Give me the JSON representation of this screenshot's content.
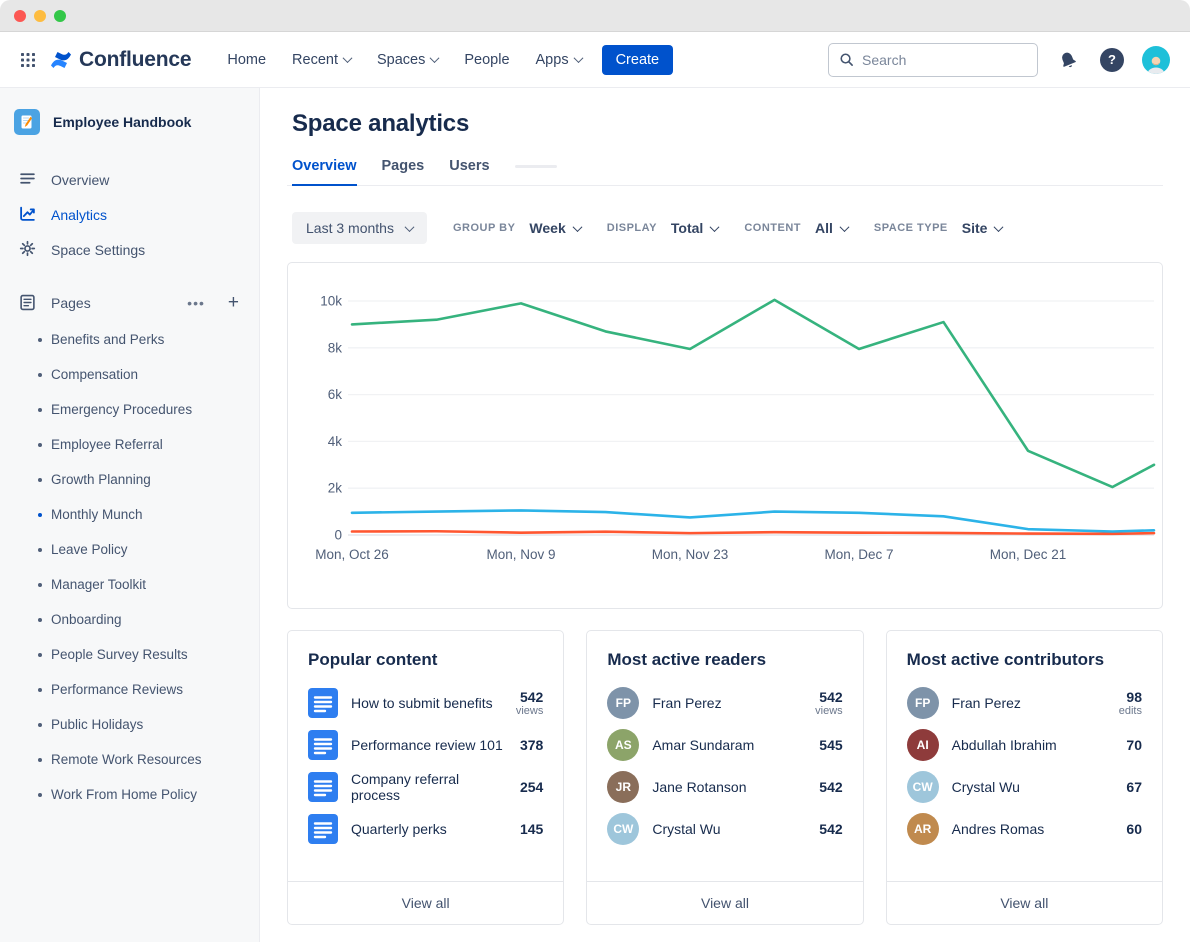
{
  "window": {
    "controls": [
      "close",
      "minimize",
      "zoom"
    ]
  },
  "navbar": {
    "logo_text": "Confluence",
    "items": [
      {
        "label": "Home",
        "chevron": false
      },
      {
        "label": "Recent",
        "chevron": true
      },
      {
        "label": "Spaces",
        "chevron": true
      },
      {
        "label": "People",
        "chevron": false
      },
      {
        "label": "Apps",
        "chevron": true
      }
    ],
    "create_label": "Create",
    "search_placeholder": "Search",
    "icons": [
      "app-switcher-icon",
      "confluence-logo",
      "search-icon",
      "bell-icon",
      "help-icon",
      "user-avatar"
    ]
  },
  "sidebar": {
    "space_name": "Employee Handbook",
    "space_icon": "notebook-pencil-icon",
    "nav": [
      {
        "label": "Overview",
        "icon": "overview-icon",
        "active": false
      },
      {
        "label": "Analytics",
        "icon": "analytics-icon",
        "active": true
      },
      {
        "label": "Space Settings",
        "icon": "gear-icon",
        "active": false
      }
    ],
    "pages_header": {
      "label": "Pages",
      "icon": "pages-icon",
      "actions": [
        "more-icon",
        "plus-icon"
      ]
    },
    "pages": [
      {
        "label": "Benefits and Perks",
        "active": false
      },
      {
        "label": "Compensation",
        "active": false
      },
      {
        "label": "Emergency Procedures",
        "active": false
      },
      {
        "label": "Employee Referral",
        "active": false
      },
      {
        "label": "Growth Planning",
        "active": false
      },
      {
        "label": "Monthly Munch",
        "active": true
      },
      {
        "label": "Leave Policy",
        "active": false
      },
      {
        "label": "Manager Toolkit",
        "active": false
      },
      {
        "label": "Onboarding",
        "active": false
      },
      {
        "label": "People Survey Results",
        "active": false
      },
      {
        "label": "Performance Reviews",
        "active": false
      },
      {
        "label": "Public Holidays",
        "active": false
      },
      {
        "label": "Remote Work Resources",
        "active": false
      },
      {
        "label": "Work From Home Policy",
        "active": false
      }
    ]
  },
  "main": {
    "title": "Space analytics",
    "tabs": [
      {
        "label": "Overview",
        "active": true
      },
      {
        "label": "Pages",
        "active": false
      },
      {
        "label": "Users",
        "active": false
      }
    ],
    "filters": {
      "date_range": "Last 3 months",
      "group_by_label": "GROUP BY",
      "group_by_value": "Week",
      "display_label": "DISPLAY",
      "display_value": "Total",
      "content_label": "CONTENT",
      "content_value": "All",
      "space_type_label": "SPACE TYPE",
      "space_type_value": "Site"
    },
    "cards": [
      {
        "title": "Popular content",
        "footer": "View all",
        "rows": [
          {
            "icon": "page-icon",
            "label": "How to submit benefits",
            "value": "542",
            "unit": "views"
          },
          {
            "icon": "page-icon",
            "label": "Performance review 101",
            "value": "378",
            "unit": ""
          },
          {
            "icon": "page-icon",
            "label": "Company referral process",
            "value": "254",
            "unit": ""
          },
          {
            "icon": "page-icon",
            "label": "Quarterly perks",
            "value": "145",
            "unit": ""
          }
        ]
      },
      {
        "title": "Most active readers",
        "footer": "View all",
        "rows": [
          {
            "avatar": {
              "initials": "FP",
              "color": "#7E93A9"
            },
            "label": "Fran Perez",
            "value": "542",
            "unit": "views"
          },
          {
            "avatar": {
              "initials": "AS",
              "color": "#8CA469"
            },
            "label": "Amar Sundaram",
            "value": "545",
            "unit": ""
          },
          {
            "avatar": {
              "initials": "JR",
              "color": "#8A6E5A"
            },
            "label": "Jane Rotanson",
            "value": "542",
            "unit": ""
          },
          {
            "avatar": {
              "initials": "CW",
              "color": "#9EC6DB"
            },
            "label": "Crystal Wu",
            "value": "542",
            "unit": ""
          }
        ]
      },
      {
        "title": "Most active contributors",
        "footer": "View all",
        "rows": [
          {
            "avatar": {
              "initials": "FP",
              "color": "#7E93A9"
            },
            "label": "Fran Perez",
            "value": "98",
            "unit": "edits"
          },
          {
            "avatar": {
              "initials": "AI",
              "color": "#8E3B3B"
            },
            "label": "Abdullah Ibrahim",
            "value": "70",
            "unit": ""
          },
          {
            "avatar": {
              "initials": "CW",
              "color": "#9EC6DB"
            },
            "label": "Crystal Wu",
            "value": "67",
            "unit": ""
          },
          {
            "avatar": {
              "initials": "AR",
              "color": "#C08A4E"
            },
            "label": "Andres Romas",
            "value": "60",
            "unit": ""
          }
        ]
      }
    ]
  },
  "chart_data": {
    "type": "line",
    "title": "",
    "legend": "none",
    "grid": "horizontal",
    "ylim": [
      0,
      10000
    ],
    "y_tick_labels": [
      "0",
      "2k",
      "4k",
      "6k",
      "8k",
      "10k"
    ],
    "y_tick_values": [
      0,
      2000,
      4000,
      6000,
      8000,
      10000
    ],
    "x_tick_labels": [
      "Mon, Oct 26",
      "Mon, Nov 9",
      "Mon, Nov 23",
      "Mon, Dec 7",
      "Mon, Dec 21"
    ],
    "x_tick_point_indices": [
      0,
      2,
      4,
      6,
      8
    ],
    "x_points": [
      "Oct 26",
      "Nov 2",
      "Nov 9",
      "Nov 16",
      "Nov 23",
      "Nov 30",
      "Dec 7",
      "Dec 14",
      "Dec 21",
      "Dec 28",
      "chart-edge"
    ],
    "note": "weekly points; final segment is clipped by the right chart edge",
    "series": [
      {
        "name": "green-line",
        "color": "#36B37E",
        "values": [
          9000,
          9200,
          9900,
          8700,
          7950,
          10050,
          7950,
          9100,
          3600,
          2050,
          3000
        ]
      },
      {
        "name": "blue-line",
        "color": "#2CB3E8",
        "values": [
          950,
          1000,
          1050,
          980,
          750,
          1000,
          950,
          800,
          250,
          150,
          200
        ]
      },
      {
        "name": "red-line",
        "color": "#FF5630",
        "values": [
          150,
          160,
          100,
          140,
          80,
          120,
          100,
          90,
          60,
          50,
          80
        ]
      }
    ]
  }
}
